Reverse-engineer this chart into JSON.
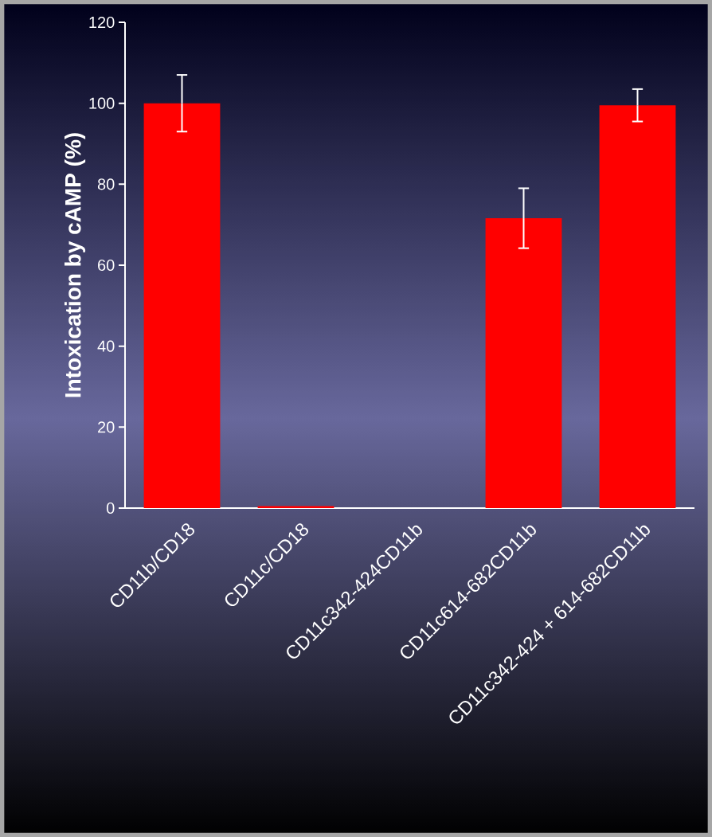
{
  "chart_data": {
    "type": "bar",
    "ylabel": "Intoxication by cAMP (%)",
    "categories": [
      "CD11b/CD18",
      "CD11c/CD18",
      "CD11c342-424CD11b",
      "CD11c614-682CD11b",
      "CD11c342-424 + 614-682CD11b"
    ],
    "values": [
      100,
      0.5,
      0,
      71.6,
      99.5
    ],
    "errors": [
      7,
      null,
      null,
      7.4,
      4
    ],
    "color": "#ff0000",
    "ylim": [
      0,
      120
    ],
    "yticks": [
      0,
      20,
      40,
      60,
      80,
      100,
      120
    ]
  }
}
